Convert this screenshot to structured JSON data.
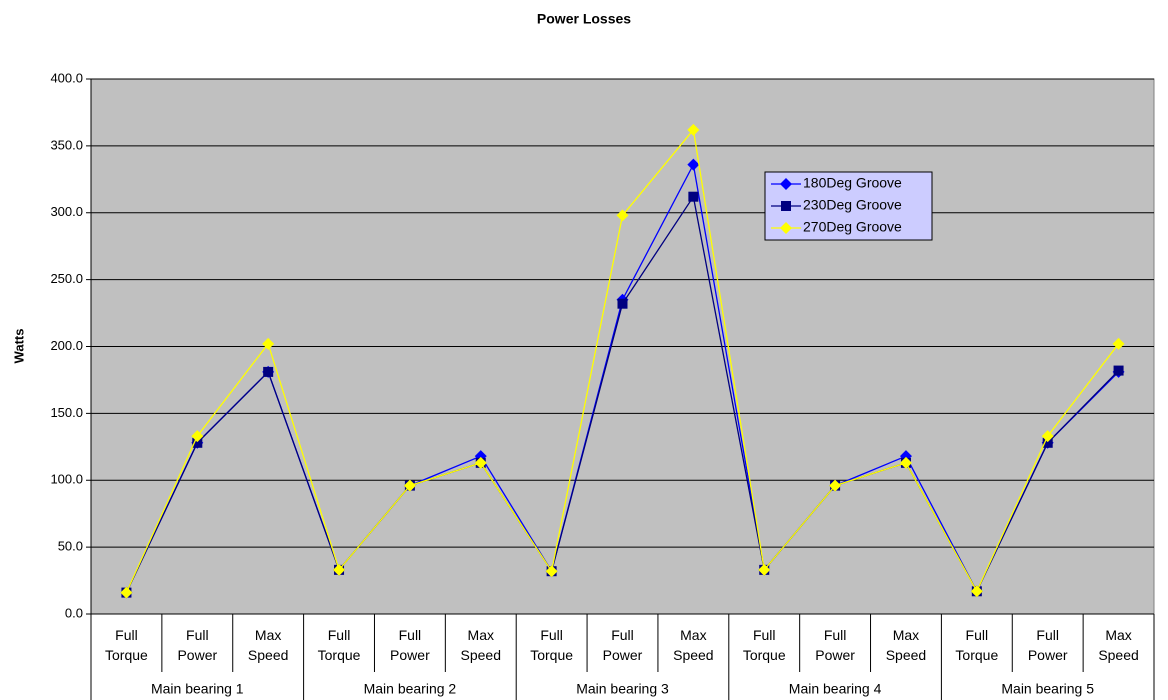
{
  "chart_data": {
    "type": "line",
    "title": "Power Losses",
    "ylabel": "Watts",
    "categories": [
      "Full Torque",
      "Full Power",
      "Max Speed",
      "Full Torque",
      "Full Power",
      "Max Speed",
      "Full Torque",
      "Full Power",
      "Max Speed",
      "Full Torque",
      "Full Power",
      "Max Speed",
      "Full Torque",
      "Full Power",
      "Max Speed"
    ],
    "groups": [
      "Main bearing 1",
      "Main bearing 2",
      "Main bearing 3",
      "Main bearing 4",
      "Main bearing 5"
    ],
    "series": [
      {
        "name": "180Deg Groove",
        "color": "#0000ff",
        "marker": "diamond",
        "values": [
          16,
          128,
          181,
          33,
          96,
          118,
          32,
          235,
          336,
          33,
          96,
          118,
          17,
          128,
          181
        ]
      },
      {
        "name": "230Deg Groove",
        "color": "#000080",
        "marker": "square",
        "values": [
          16,
          128,
          181,
          33,
          96,
          113,
          32,
          232,
          312,
          33,
          96,
          113,
          17,
          128,
          182
        ]
      },
      {
        "name": "270Deg Groove",
        "color": "#ffff00",
        "marker": "diamond",
        "values": [
          16,
          133,
          202,
          33,
          96,
          113,
          32,
          298,
          362,
          33,
          96,
          113,
          17,
          133,
          202
        ]
      }
    ],
    "ylim": [
      0,
      400
    ],
    "yticks": [
      {
        "value": 0,
        "label": "0.0"
      },
      {
        "value": 50,
        "label": "50.0"
      },
      {
        "value": 100,
        "label": "100.0"
      },
      {
        "value": 150,
        "label": "150.0"
      },
      {
        "value": 200,
        "label": "200.0"
      },
      {
        "value": 250,
        "label": "250.0"
      },
      {
        "value": 300,
        "label": "300.0"
      },
      {
        "value": 350,
        "label": "350.0"
      },
      {
        "value": 400,
        "label": "400.0"
      }
    ],
    "grid": true,
    "legend": "upper-right",
    "background": "#c0c0c0",
    "legend_background": "#ccccff"
  }
}
